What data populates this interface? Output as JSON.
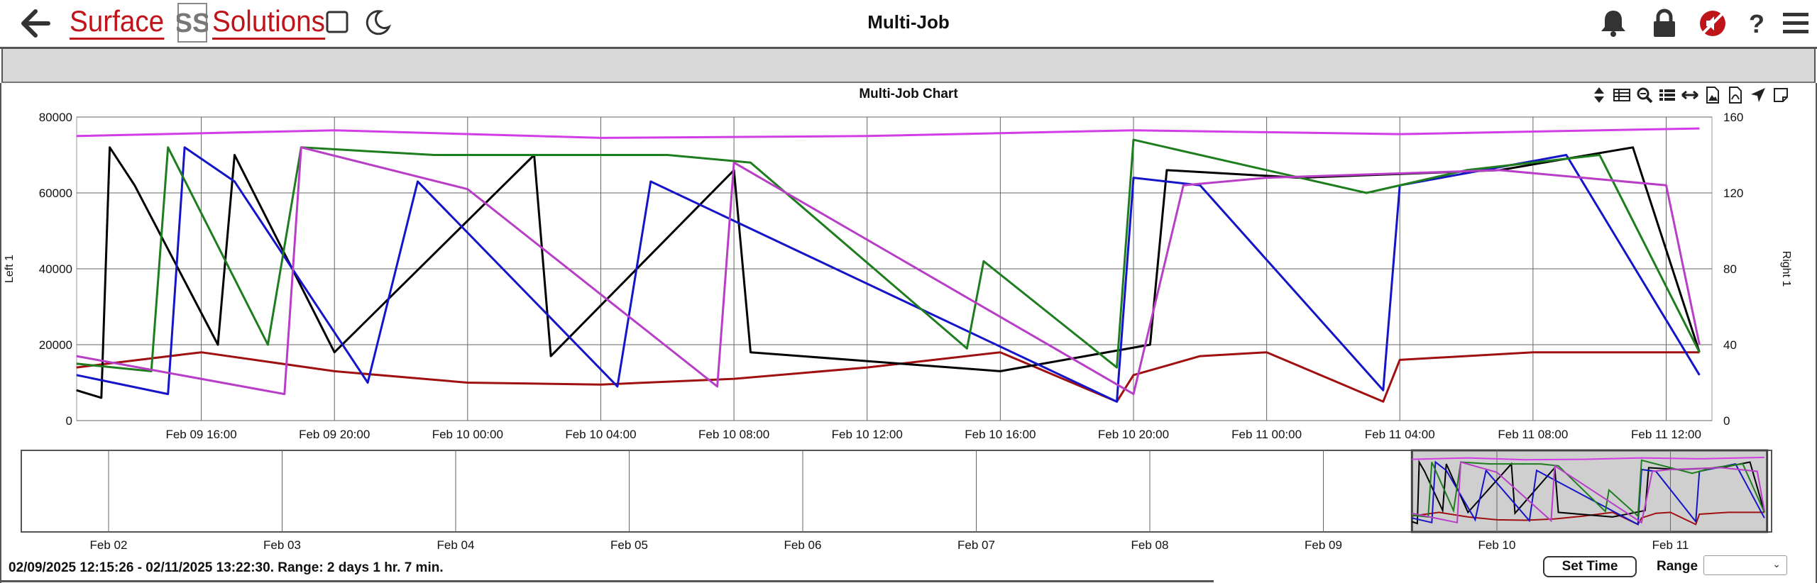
{
  "header": {
    "brand_left": "Surface",
    "brand_right": "Solutions",
    "brand_mark": "SS",
    "title": "Multi-Job"
  },
  "icons": {
    "back": "arrow-left-icon",
    "layout": "square-icon",
    "theme": "moon-icon",
    "notifications": "bell-icon",
    "lock": "lock-icon",
    "mute": "no-sound-icon",
    "help": "question-icon",
    "menu": "hamburger-icon"
  },
  "colors": {
    "brand": "#c0141b",
    "black_series": "#000000",
    "blue_series": "#1414c8",
    "green_series": "#1e7d1e",
    "purple_series": "#b83ec8",
    "red_series": "#a01010",
    "magenta_series": "#d23ee6",
    "navigator_selection": "#cfcfcf"
  },
  "chart_data": {
    "type": "line",
    "title": "Multi-Job Chart",
    "left_axis_label": "Left 1",
    "right_axis_label": "Right 1",
    "left_ylim": [
      0,
      80000
    ],
    "right_ylim": [
      0,
      160
    ],
    "left_ticks": [
      "0",
      "20000",
      "40000",
      "60000",
      "80000"
    ],
    "right_ticks": [
      "0",
      "40",
      "80",
      "120",
      "160"
    ],
    "x_ticks": [
      "Feb 09 16:00",
      "Feb 09 20:00",
      "Feb 10 00:00",
      "Feb 10 04:00",
      "Feb 10 08:00",
      "Feb 10 12:00",
      "Feb 10 16:00",
      "Feb 10 20:00",
      "Feb 11 00:00",
      "Feb 11 04:00",
      "Feb 11 08:00",
      "Feb 11 12:00"
    ],
    "xlim": [
      "02/09/2025 12:15:26",
      "02/11/2025 13:22:30"
    ],
    "grid": true,
    "series": [
      {
        "color": "magenta",
        "axis": "right",
        "x": [
          "Feb 09 12:15",
          "Feb 09 20:00",
          "Feb 10 04:00",
          "Feb 10 12:00",
          "Feb 10 20:00",
          "Feb 11 04:00",
          "Feb 11 13:00"
        ],
        "values": [
          150,
          153,
          149,
          150,
          153,
          151,
          154
        ]
      },
      {
        "color": "red",
        "axis": "left",
        "x": [
          "Feb 09 12:15",
          "Feb 09 16:00",
          "Feb 09 20:00",
          "Feb 10 00:00",
          "Feb 10 04:00",
          "Feb 10 08:00",
          "Feb 10 12:00",
          "Feb 10 16:00",
          "Feb 10 19:30",
          "Feb 10 20:00",
          "Feb 10 22:00",
          "Feb 11 00:00",
          "Feb 11 03:30",
          "Feb 11 04:00",
          "Feb 11 08:00",
          "Feb 11 13:00"
        ],
        "values": [
          14000,
          18000,
          13000,
          10000,
          9500,
          11000,
          14000,
          18000,
          5000,
          12000,
          17000,
          18000,
          5000,
          16000,
          18000,
          18000
        ]
      },
      {
        "color": "black",
        "axis": "left",
        "x": [
          "Feb 09 12:15",
          "Feb 09 13:00",
          "Feb 09 13:15",
          "Feb 09 14:00",
          "Feb 09 16:30",
          "Feb 09 17:00",
          "Feb 09 20:00",
          "Feb 10 02:00",
          "Feb 10 02:30",
          "Feb 10 08:00",
          "Feb 10 08:30",
          "Feb 10 16:00",
          "Feb 10 20:30",
          "Feb 10 21:00",
          "Feb 11 01:00",
          "Feb 11 07:00",
          "Feb 11 11:00",
          "Feb 11 13:00"
        ],
        "values": [
          8000,
          6000,
          72000,
          62000,
          20000,
          70000,
          18000,
          70000,
          17000,
          66000,
          18000,
          13000,
          20000,
          66000,
          64000,
          66000,
          72000,
          18000
        ]
      },
      {
        "color": "blue",
        "axis": "left",
        "x": [
          "Feb 09 12:15",
          "Feb 09 15:00",
          "Feb 09 15:30",
          "Feb 09 17:00",
          "Feb 09 21:00",
          "Feb 09 22:30",
          "Feb 10 04:30",
          "Feb 10 05:30",
          "Feb 10 19:30",
          "Feb 10 20:00",
          "Feb 10 22:00",
          "Feb 11 03:30",
          "Feb 11 04:00",
          "Feb 11 09:00",
          "Feb 11 13:00"
        ],
        "values": [
          12000,
          7000,
          72000,
          63000,
          10000,
          63000,
          9000,
          63000,
          5000,
          64000,
          62000,
          8000,
          62000,
          70000,
          12000
        ]
      },
      {
        "color": "green",
        "axis": "left",
        "x": [
          "Feb 09 12:15",
          "Feb 09 14:30",
          "Feb 09 15:00",
          "Feb 09 18:00",
          "Feb 09 19:00",
          "Feb 09 23:00",
          "Feb 10 06:00",
          "Feb 10 08:30",
          "Feb 10 15:00",
          "Feb 10 15:30",
          "Feb 10 19:30",
          "Feb 10 20:00",
          "Feb 11 03:00",
          "Feb 11 06:00",
          "Feb 11 10:00",
          "Feb 11 13:00"
        ],
        "values": [
          15000,
          13000,
          72000,
          20000,
          72000,
          70000,
          70000,
          68000,
          19000,
          42000,
          14000,
          74000,
          60000,
          66000,
          70000,
          18000
        ]
      },
      {
        "color": "purple",
        "axis": "left",
        "x": [
          "Feb 09 12:15",
          "Feb 09 18:30",
          "Feb 09 19:00",
          "Feb 10 00:00",
          "Feb 10 07:30",
          "Feb 10 08:00",
          "Feb 10 20:00",
          "Feb 10 21:30",
          "Feb 11 00:00",
          "Feb 11 07:00",
          "Feb 11 12:00",
          "Feb 11 13:00"
        ],
        "values": [
          17000,
          7000,
          72000,
          61000,
          9000,
          68000,
          7000,
          62000,
          64000,
          66000,
          62000,
          20000
        ]
      }
    ],
    "navigator": {
      "x_ticks": [
        "Feb 02",
        "Feb 03",
        "Feb 04",
        "Feb 05",
        "Feb 06",
        "Feb 07",
        "Feb 08",
        "Feb 09",
        "Feb 10",
        "Feb 11"
      ],
      "selection": [
        "Feb 09 12:15",
        "Feb 11 13:22"
      ]
    }
  },
  "toolbar": {
    "items": [
      "sort-icon",
      "table-icon",
      "zoom-out-icon",
      "list-icon",
      "expand-horizontal-icon",
      "image-icon",
      "pdf-icon",
      "send-icon",
      "note-icon"
    ]
  },
  "footer": {
    "status": "02/09/2025 12:15:26 - 02/11/2025 13:22:30. Range: 2 days 1 hr. 7 min.",
    "set_time": "Set Time",
    "range_label": "Range",
    "range_value": ""
  }
}
